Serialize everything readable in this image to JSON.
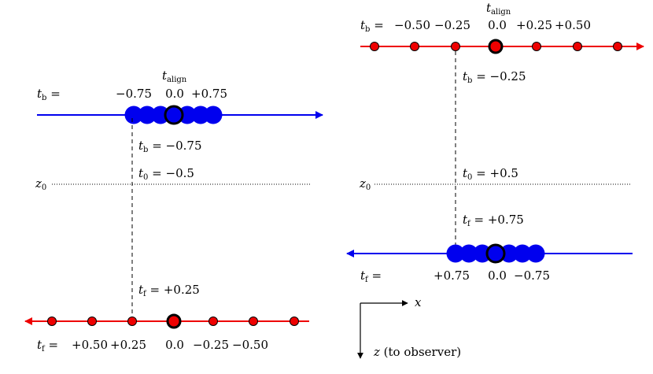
{
  "colors": {
    "red": "#ee0000",
    "blue": "#0000ee",
    "black": "#000000"
  },
  "panel_left": {
    "align_label": "t",
    "align_sub": "align",
    "top_row_prefix": {
      "t": "t",
      "sub": "b",
      "eq": " ="
    },
    "top_ticks": [
      "−0.75",
      "0.0",
      "+0.75"
    ],
    "dashed_labels": [
      {
        "t": "t",
        "sub": "b",
        "eq": " = −0.75"
      },
      {
        "t": "t",
        "sub": "0",
        "eq": " = −0.5"
      },
      {
        "t": "t",
        "sub": "f",
        "eq": " = +0.25"
      }
    ],
    "z0": {
      "t": "z",
      "sub": "0"
    },
    "bottom_row_prefix": {
      "t": "t",
      "sub": "f",
      "eq": " ="
    },
    "bottom_ticks": [
      "+0.50",
      "+0.25",
      "0.0",
      "−0.25",
      "−0.50"
    ]
  },
  "panel_right": {
    "align_label": "t",
    "align_sub": "align",
    "top_row_prefix": {
      "t": "t",
      "sub": "b",
      "eq": " ="
    },
    "top_ticks": [
      "−0.50",
      "−0.25",
      "0.0",
      "+0.25",
      "+0.50"
    ],
    "dashed_labels": [
      {
        "t": "t",
        "sub": "b",
        "eq": " = −0.25"
      },
      {
        "t": "t",
        "sub": "0",
        "eq": " = +0.5"
      },
      {
        "t": "t",
        "sub": "f",
        "eq": " = +0.75"
      }
    ],
    "z0": {
      "t": "z",
      "sub": "0"
    },
    "bottom_row_prefix": {
      "t": "t",
      "sub": "f",
      "eq": " ="
    },
    "bottom_ticks": [
      "+0.75",
      "0.0",
      "−0.75"
    ]
  },
  "axes": {
    "x_label": "x",
    "z_label": "z",
    "z_suffix": " (to observer)"
  }
}
